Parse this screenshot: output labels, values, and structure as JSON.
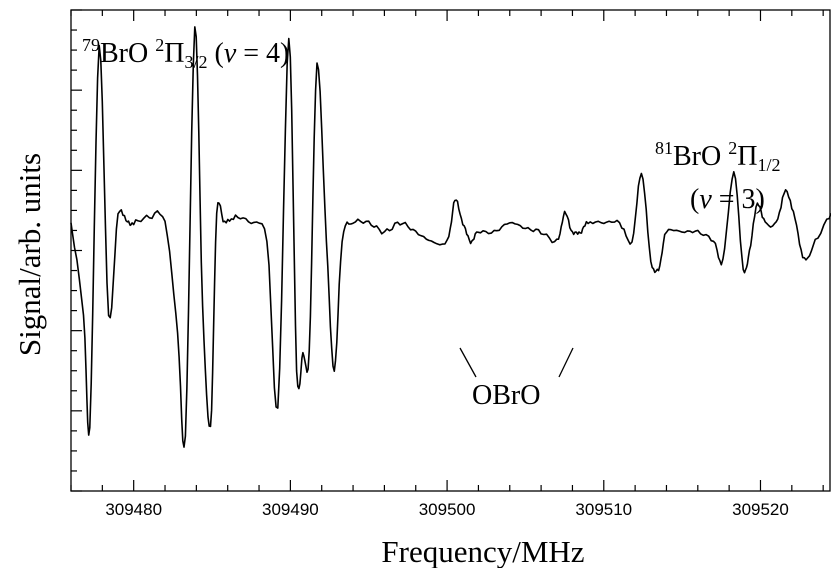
{
  "chart_data": {
    "type": "line",
    "xlabel": "Frequency/MHz",
    "ylabel": "Signal/arb. units",
    "xlim": [
      309476,
      309524.5
    ],
    "ylim": [
      -1.45,
      1.15
    ],
    "xticks": [
      309480,
      309490,
      309500,
      309510,
      309520
    ],
    "grid": false,
    "series": [
      {
        "x": [
          309476,
          309476.8,
          309477.2,
          309477.8,
          309478.4,
          309479,
          309479.6,
          309480,
          309481,
          309482,
          309482.8,
          309483.3,
          309483.9,
          309484.4,
          309484.9,
          309485.3,
          309485.8,
          309486.5,
          309487.5,
          309488.5,
          309489.2,
          309489.9,
          309490.4,
          309490.8,
          309491.2,
          309491.7,
          309492.3,
          309492.8,
          309493.3,
          309494,
          309495,
          309496,
          309497,
          309498,
          309499,
          309500,
          309500.5,
          309501,
          309501.5,
          309502,
          309503,
          309504,
          309505,
          309506,
          309507,
          309507.5,
          309508,
          309508.5,
          309509,
          309510,
          309511,
          309511.8,
          309512.4,
          309513,
          309513.5,
          309514,
          309515,
          309516,
          309517,
          309517.6,
          309518.3,
          309518.9,
          309519.3,
          309519.8,
          309520.3,
          309521,
          309521.6,
          309522.2,
          309522.8,
          309523.5,
          309524.5
        ],
        "y": [
          0,
          -0.5,
          -1.1,
          0.95,
          -0.5,
          0.04,
          0.0,
          0.0,
          0.03,
          0.0,
          -0.6,
          -1.15,
          1.05,
          -0.45,
          -1.1,
          0.04,
          0.0,
          0.03,
          0.0,
          -0.1,
          -1.0,
          1.0,
          -0.8,
          -0.7,
          -0.7,
          0.85,
          -0.1,
          -0.8,
          -0.1,
          0.0,
          0.0,
          -0.05,
          0.0,
          -0.05,
          -0.1,
          -0.1,
          0.12,
          0.0,
          -0.1,
          -0.05,
          -0.05,
          0.0,
          -0.03,
          -0.05,
          -0.1,
          0.05,
          -0.05,
          -0.05,
          0.0,
          0.0,
          0.0,
          -0.1,
          0.27,
          -0.2,
          -0.25,
          -0.05,
          -0.05,
          -0.05,
          -0.1,
          -0.2,
          0.27,
          -0.25,
          -0.15,
          0.1,
          0.0,
          0.0,
          0.17,
          0.02,
          -0.2,
          -0.1,
          0.05
        ]
      }
    ],
    "annotations": {
      "br79": {
        "pre": "79",
        "mol": "BrO ",
        "sup": "2",
        "sym": "Π",
        "sub": "3/2",
        "open": " (",
        "v": "v",
        "rest": " = 4)"
      },
      "br81": {
        "pre": "81",
        "mol": "BrO ",
        "sup": "2",
        "sym": "Π",
        "sub": "1/2",
        "open": "(",
        "v": "v",
        "rest": " = 3)"
      },
      "obro": "OBrO"
    }
  }
}
